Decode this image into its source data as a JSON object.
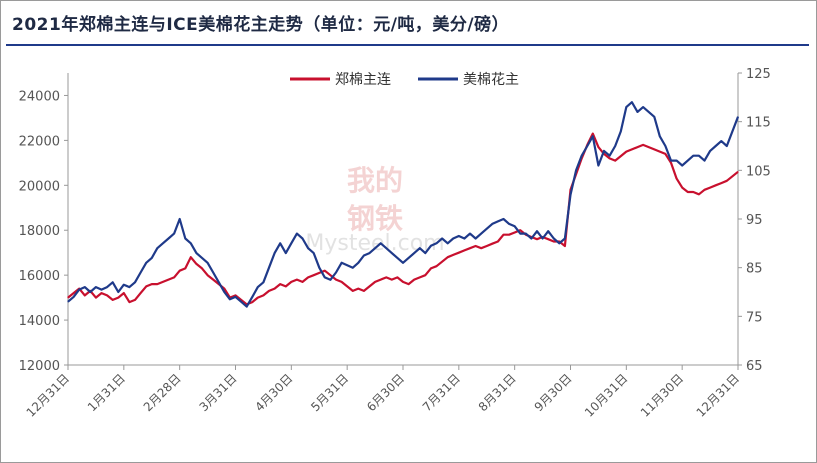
{
  "chart_data": {
    "type": "line",
    "title": "2021年郑棉主连与ICE美棉花主走势（单位：元/吨，美分/磅）",
    "watermark": {
      "line1": "我的",
      "line2": "钢铁",
      "line3": "Mysteel.com",
      "color": "#e8a0a0"
    },
    "x_tick_labels": [
      "12月31日",
      "1月31日",
      "2月28日",
      "3月31日",
      "4月30日",
      "5月31日",
      "6月30日",
      "7月31日",
      "8月31日",
      "9月30日",
      "10月31日",
      "11月30日",
      "12月31日"
    ],
    "left_axis": {
      "ylim": [
        12000,
        25000
      ],
      "ticks": [
        "12000",
        "14000",
        "16000",
        "18000",
        "20000",
        "22000",
        "24000"
      ]
    },
    "right_axis": {
      "ylim": [
        65,
        125
      ],
      "ticks": [
        "65",
        "75",
        "85",
        "95",
        "105",
        "115",
        "125"
      ]
    },
    "legend": {
      "position": "top-center"
    },
    "series": [
      {
        "name": "郑棉主连",
        "axis": "left",
        "color": "#c8102e",
        "x": [
          0,
          2,
          4,
          6,
          8,
          10,
          12,
          14,
          16,
          18,
          20,
          22,
          24,
          26,
          28,
          30,
          32,
          34,
          36,
          38,
          40,
          42,
          44,
          46,
          48,
          50,
          52,
          54,
          56,
          58,
          60,
          62,
          64,
          66,
          68,
          70,
          72,
          74,
          76,
          78,
          80,
          82,
          84,
          86,
          88,
          90,
          92,
          94,
          96,
          98,
          100,
          102,
          104,
          106,
          108,
          110,
          112,
          114,
          116,
          118,
          120,
          122,
          124,
          126,
          128,
          130,
          132,
          134,
          136,
          138,
          140,
          142,
          144,
          146,
          148,
          150,
          152,
          154,
          156,
          158,
          160,
          162,
          164,
          166,
          168,
          170,
          172,
          174,
          176,
          178,
          180,
          182,
          184,
          186,
          188,
          190,
          192,
          194,
          196,
          198,
          200,
          202,
          204,
          206,
          208,
          210,
          212,
          214,
          216,
          218,
          220,
          222,
          224,
          226,
          228,
          230,
          232,
          234,
          236,
          238,
          240
        ],
        "values": [
          15000,
          15200,
          15400,
          15100,
          15300,
          15000,
          15200,
          15100,
          14900,
          15000,
          15200,
          14800,
          14900,
          15200,
          15500,
          15600,
          15600,
          15700,
          15800,
          15900,
          16200,
          16300,
          16800,
          16500,
          16300,
          16000,
          15800,
          15600,
          15400,
          15000,
          15100,
          14900,
          14700,
          14800,
          15000,
          15100,
          15300,
          15400,
          15600,
          15500,
          15700,
          15800,
          15700,
          15900,
          16000,
          16100,
          16200,
          16000,
          15800,
          15700,
          15500,
          15300,
          15400,
          15300,
          15500,
          15700,
          15800,
          15900,
          15800,
          15900,
          15700,
          15600,
          15800,
          15900,
          16000,
          16300,
          16400,
          16600,
          16800,
          16900,
          17000,
          17100,
          17200,
          17300,
          17200,
          17300,
          17400,
          17500,
          17800,
          17800,
          17900,
          18000,
          17800,
          17700,
          17600,
          17700,
          17600,
          17500,
          17500,
          17300,
          19800,
          20500,
          21200,
          21800,
          22300,
          21700,
          21400,
          21200,
          21100,
          21300,
          21500,
          21600,
          21700,
          21800,
          21700,
          21600,
          21500,
          21400,
          21000,
          20300,
          19900,
          19700,
          19700,
          19600,
          19800,
          19900,
          20000,
          20100,
          20200,
          20400,
          20600
        ],
        "x_ticks_at": [
          0,
          20,
          40,
          60,
          80,
          100,
          120,
          140,
          160,
          180,
          200,
          220,
          240
        ]
      },
      {
        "name": "美棉花主",
        "axis": "right",
        "color": "#1f3a8a",
        "x": [
          0,
          2,
          4,
          6,
          8,
          10,
          12,
          14,
          16,
          18,
          20,
          22,
          24,
          26,
          28,
          30,
          32,
          34,
          36,
          38,
          40,
          42,
          44,
          46,
          48,
          50,
          52,
          54,
          56,
          58,
          60,
          62,
          64,
          66,
          68,
          70,
          72,
          74,
          76,
          78,
          80,
          82,
          84,
          86,
          88,
          90,
          92,
          94,
          96,
          98,
          100,
          102,
          104,
          106,
          108,
          110,
          112,
          114,
          116,
          118,
          120,
          122,
          124,
          126,
          128,
          130,
          132,
          134,
          136,
          138,
          140,
          142,
          144,
          146,
          148,
          150,
          152,
          154,
          156,
          158,
          160,
          162,
          164,
          166,
          168,
          170,
          172,
          174,
          176,
          178,
          180,
          182,
          184,
          186,
          188,
          190,
          192,
          194,
          196,
          198,
          200,
          202,
          204,
          206,
          208,
          210,
          212,
          214,
          216,
          218,
          220,
          222,
          224,
          226,
          228,
          230,
          232,
          234,
          236,
          238,
          240
        ],
        "values": [
          78,
          79,
          80.5,
          81,
          80,
          81,
          80.5,
          81,
          82,
          80,
          81.5,
          81,
          82,
          84,
          86,
          87,
          89,
          90,
          91,
          92,
          95,
          91,
          90,
          88,
          87,
          86,
          84,
          82,
          80,
          78.5,
          79,
          78,
          77,
          79,
          81,
          82,
          85,
          88,
          90,
          88,
          90,
          92,
          91,
          89,
          88,
          85,
          83,
          82.5,
          84,
          86,
          85.5,
          85,
          86,
          87.5,
          88,
          89,
          90,
          89,
          88,
          87,
          86,
          87,
          88,
          89,
          88,
          89.5,
          90,
          91,
          90,
          91,
          91.5,
          91,
          92,
          91,
          92,
          93,
          94,
          94.5,
          95,
          94,
          93.5,
          92,
          92,
          91,
          92.5,
          91,
          92.5,
          91,
          90,
          91,
          100,
          105,
          108,
          110,
          112,
          106,
          109,
          108,
          110,
          113,
          118,
          119,
          117,
          118,
          117,
          116,
          112,
          110,
          107,
          107,
          106,
          107,
          108,
          108,
          107,
          109,
          110,
          111,
          110,
          113,
          116
        ],
        "x_ticks_at": [
          0,
          20,
          40,
          60,
          80,
          100,
          120,
          140,
          160,
          180,
          200,
          220,
          240
        ]
      }
    ],
    "xlabel": "",
    "ylabel": "",
    "grid": false
  }
}
